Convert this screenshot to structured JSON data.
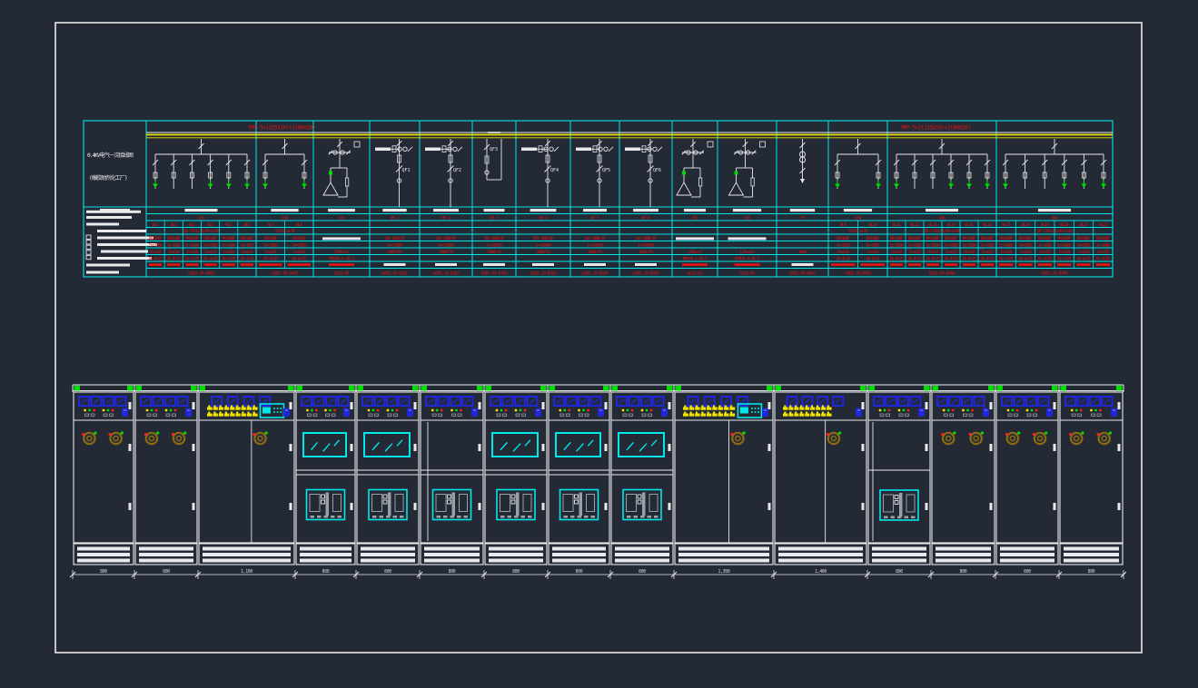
{
  "colors": {
    "background": "#232935",
    "frame": "#e9e9ec",
    "grid_cyan": "#00e8e8",
    "bus_yellow": "#f0e400",
    "text_red": "#e81414",
    "line_white": "#e9e9ec",
    "ground_green": "#00dc00",
    "meter_blue": "#2026dc",
    "handle_olive": "#8a6b14",
    "detail_grey": "#9aa0a6"
  },
  "title_block": {
    "line1": "0.4KV电气一次接线图",
    "line2": "(橡胶助剂化工厂)"
  },
  "busbar": {
    "left_label": "TMY-3×(125X10)+2(80X10)",
    "right_label": "TMY-3×2(125X10)+2(80X10)"
  },
  "schematic": {
    "columns": [
      {
        "id": "title",
        "type": "title"
      },
      {
        "id": "dl1",
        "type": "tree",
        "n": 6,
        "grounds": [
          1,
          0,
          0,
          1,
          1,
          1
        ],
        "tag": "1AA",
        "spec": "ZR-YJV22-4×95+1×50",
        "circuits": [
          "WL1",
          "WL2",
          "WL3",
          "WL4",
          "WL5",
          "WL6"
        ],
        "breaker": "NSX100F",
        "iset": "In=100A",
        "icalc": "Ie=63A",
        "cable": "VV-4×25",
        "model": "GGD2-39-0401"
      },
      {
        "id": "dl2",
        "type": "tree",
        "n": 2,
        "grounds": [
          1,
          1
        ],
        "tag": "2AA",
        "spec": "YJV22-4×70",
        "circuits": [
          "WL7",
          "WL8"
        ],
        "breaker": "NSX100F",
        "iset": "In=100A",
        "icalc": "Ie=63A",
        "cable": "VV-4×25",
        "model": "GGD2-39-0402"
      },
      {
        "id": "cap1",
        "type": "cap",
        "tag": "1AC",
        "kvar": "120kvar",
        "dev": "BSMJ0.4-30-3",
        "model": "GGJ2-01"
      },
      {
        "id": "in1",
        "type": "incomer",
        "qf": "QF1",
        "tag": "QF-1",
        "breaker": "CW1-2000/4P",
        "iset": "In=2000A",
        "ct": "2000/5A",
        "model": "GGD2-10-0201"
      },
      {
        "id": "in2",
        "type": "incomer",
        "qf": "QF2",
        "tag": "QF-2",
        "breaker": "CW1-2000/4P",
        "iset": "In=2000A",
        "ct": "2000/5A",
        "model": "GGD2-10-0202"
      },
      {
        "id": "tie",
        "type": "tie",
        "qf": "QF3",
        "tag": "QF-3",
        "breaker": "CW1-2000/4P",
        "iset": "In=2000A",
        "ct": "2000/5A",
        "model": "GGD2-55-0301"
      },
      {
        "id": "in3",
        "type": "incomer",
        "qf": "QF4",
        "tag": "QF-4",
        "breaker": "CW1-2000/4P",
        "iset": "In=2000A",
        "ct": "2000/5A",
        "model": "GGD2-10-0203"
      },
      {
        "id": "in4",
        "type": "incomer",
        "qf": "QF5",
        "tag": "QF-5",
        "breaker": "CW1-2000/4P",
        "iset": "In=2000A",
        "ct": "2000/5A",
        "model": "GGD2-10-0204"
      },
      {
        "id": "in5",
        "type": "incomer",
        "qf": "QF6",
        "tag": "QF-6",
        "breaker": "CW1-2000/4P",
        "iset": "In=2000A",
        "ct": "2000/5A",
        "model": "GGD2-10-0205"
      },
      {
        "id": "cap2",
        "type": "cap",
        "tag": "2AC",
        "kvar": "120kvar",
        "dev": "BSMJ0.4-30-3",
        "model": "GGJ2-02"
      },
      {
        "id": "cap3",
        "type": "cap",
        "tag": "3AC",
        "kvar": "120kvar",
        "dev": "BSMJ0.4-30-3",
        "model": "GGJ2-03"
      },
      {
        "id": "pt",
        "type": "pt",
        "tag": "PT",
        "sec": "100V",
        "model": "GGD2-80-0601"
      },
      {
        "id": "dl3",
        "type": "tree",
        "n": 2,
        "grounds": [
          1,
          1
        ],
        "tag": "3AA",
        "spec": "YJV22-4×70",
        "circuits": [
          "WL9",
          "WL10"
        ],
        "breaker": "NSX100F",
        "iset": "In=100A",
        "icalc": "Ie=63A",
        "cable": "VV-4×25",
        "model": "GGD2-39-0403"
      },
      {
        "id": "dl4",
        "type": "tree",
        "n": 6,
        "grounds": [
          1,
          0,
          0,
          1,
          1,
          1
        ],
        "tag": "4AA",
        "spec": "ZR-YJV22-4×95+1×50",
        "circuits": [
          "WL11",
          "WL12",
          "WL13",
          "WL14",
          "WL15",
          "WL16"
        ],
        "breaker": "NSX100F",
        "iset": "In=100A",
        "icalc": "Ie=63A",
        "cable": "VV-4×25",
        "model": "GGD2-39-0404"
      },
      {
        "id": "dl5",
        "type": "tree",
        "n": 6,
        "grounds": [
          1,
          0,
          0,
          1,
          1,
          1
        ],
        "tag": "5AA",
        "spec": "ZR-YJV22-4×95+1×50",
        "circuits": [
          "WL17",
          "WL18",
          "WL19",
          "WL20",
          "WL21",
          "WL22"
        ],
        "breaker": "NSX100F",
        "iset": "In=100A",
        "icalc": "Ie=63A",
        "cable": "VV-4×25",
        "model": "GGD2-39-0405"
      }
    ]
  },
  "elevation": {
    "panels": [
      {
        "type": "feeder",
        "dim": "800"
      },
      {
        "type": "feeder",
        "dim": "800"
      },
      {
        "type": "control",
        "dim": "1,100",
        "device": true
      },
      {
        "type": "incomer",
        "dim": "800",
        "window": true
      },
      {
        "type": "incomer",
        "dim": "800",
        "window": true
      },
      {
        "type": "incomer",
        "dim": "800",
        "window": false
      },
      {
        "type": "incomer",
        "dim": "800",
        "window": true
      },
      {
        "type": "incomer",
        "dim": "800",
        "window": true
      },
      {
        "type": "incomer",
        "dim": "800",
        "window": true
      },
      {
        "type": "control",
        "dim": "1,300",
        "device": true
      },
      {
        "type": "control",
        "dim": "1,400",
        "device": false
      },
      {
        "type": "acb",
        "dim": "800"
      },
      {
        "type": "feeder",
        "dim": "800"
      },
      {
        "type": "feeder",
        "dim": "800"
      },
      {
        "type": "feeder",
        "dim": "800"
      }
    ]
  }
}
